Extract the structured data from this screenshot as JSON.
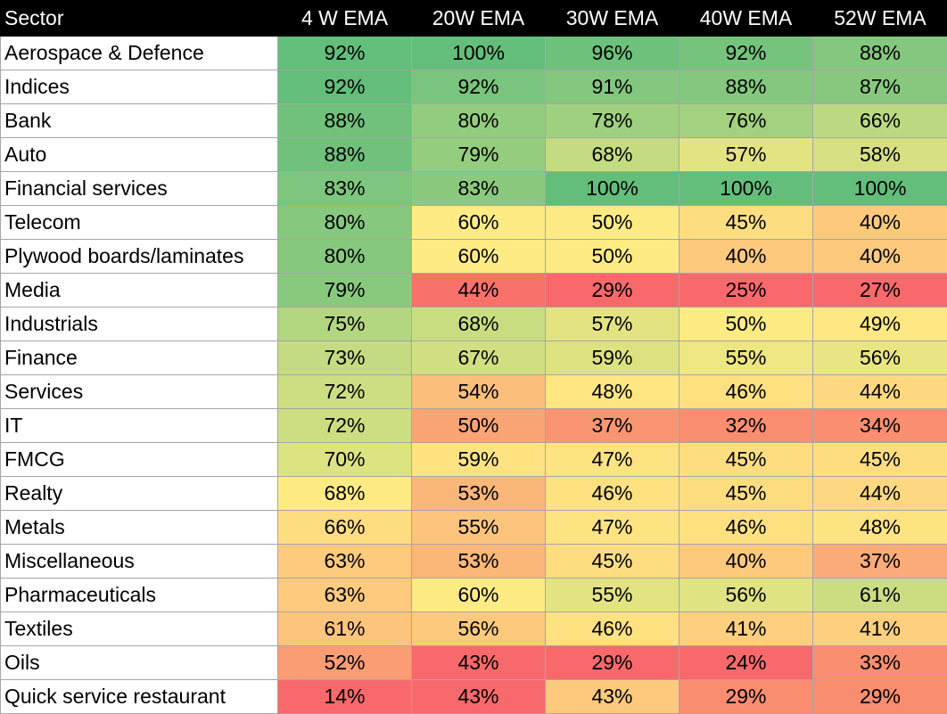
{
  "table": {
    "headers": [
      "Sector",
      "4 W EMA",
      "20W EMA",
      "30W EMA",
      "40W EMA",
      "52W EMA"
    ],
    "rows": [
      {
        "sector": "Aerospace & Defence",
        "values": [
          "92%",
          "100%",
          "96%",
          "92%",
          "88%"
        ]
      },
      {
        "sector": "Indices",
        "values": [
          "92%",
          "92%",
          "91%",
          "88%",
          "87%"
        ]
      },
      {
        "sector": "Bank",
        "values": [
          "88%",
          "80%",
          "78%",
          "76%",
          "66%"
        ]
      },
      {
        "sector": "Auto",
        "values": [
          "88%",
          "79%",
          "68%",
          "57%",
          "58%"
        ]
      },
      {
        "sector": "Financial services",
        "values": [
          "83%",
          "83%",
          "100%",
          "100%",
          "100%"
        ]
      },
      {
        "sector": "Telecom",
        "values": [
          "80%",
          "60%",
          "50%",
          "45%",
          "40%"
        ]
      },
      {
        "sector": "Plywood boards/laminates",
        "values": [
          "80%",
          "60%",
          "50%",
          "40%",
          "40%"
        ]
      },
      {
        "sector": "Media",
        "values": [
          "79%",
          "44%",
          "29%",
          "25%",
          "27%"
        ]
      },
      {
        "sector": "Industrials",
        "values": [
          "75%",
          "68%",
          "57%",
          "50%",
          "49%"
        ]
      },
      {
        "sector": "Finance",
        "values": [
          "73%",
          "67%",
          "59%",
          "55%",
          "56%"
        ]
      },
      {
        "sector": "Services",
        "values": [
          "72%",
          "54%",
          "48%",
          "46%",
          "44%"
        ]
      },
      {
        "sector": "IT",
        "values": [
          "72%",
          "50%",
          "37%",
          "32%",
          "34%"
        ]
      },
      {
        "sector": "FMCG",
        "values": [
          "70%",
          "59%",
          "47%",
          "45%",
          "45%"
        ]
      },
      {
        "sector": "Realty",
        "values": [
          "68%",
          "53%",
          "46%",
          "45%",
          "44%"
        ]
      },
      {
        "sector": "Metals",
        "values": [
          "66%",
          "55%",
          "47%",
          "46%",
          "48%"
        ]
      },
      {
        "sector": "Miscellaneous",
        "values": [
          "63%",
          "53%",
          "45%",
          "40%",
          "37%"
        ]
      },
      {
        "sector": "Pharmaceuticals",
        "values": [
          "63%",
          "60%",
          "55%",
          "56%",
          "61%"
        ]
      },
      {
        "sector": "Textiles",
        "values": [
          "61%",
          "56%",
          "46%",
          "41%",
          "41%"
        ]
      },
      {
        "sector": "Oils",
        "values": [
          "52%",
          "43%",
          "29%",
          "24%",
          "33%"
        ]
      },
      {
        "sector": "Quick service restaurant",
        "values": [
          "14%",
          "43%",
          "43%",
          "29%",
          "29%"
        ]
      }
    ],
    "cell_colors": [
      [
        "#63be7b",
        "#63be7b",
        "#6dc17c",
        "#75c37d",
        "#84c77e"
      ],
      [
        "#63be7b",
        "#7ac47d",
        "#83c77e",
        "#84c77e",
        "#87c87e"
      ],
      [
        "#6fc17c",
        "#92cc7e",
        "#9fd07f",
        "#a2d17f",
        "#bcd981"
      ],
      [
        "#6fc17c",
        "#95cd7e",
        "#c3db81",
        "#e3e382",
        "#d6df82"
      ],
      [
        "#7ec57d",
        "#8bca7e",
        "#63be7b",
        "#63be7b",
        "#63be7b"
      ],
      [
        "#86c87e",
        "#ffeb84",
        "#ffeb84",
        "#fedd81",
        "#fdc97d"
      ],
      [
        "#86c87e",
        "#ffeb84",
        "#ffeb84",
        "#fdc97d",
        "#fdc97d"
      ],
      [
        "#89c97e",
        "#f8716b",
        "#f8696b",
        "#f8696b",
        "#f8696b"
      ],
      [
        "#b3d680",
        "#c8dd81",
        "#e3e382",
        "#ffeb84",
        "#ffe883"
      ],
      [
        "#c4db81",
        "#d1df82",
        "#dde281",
        "#eee683",
        "#e8e582"
      ],
      [
        "#ccde82",
        "#fcbe7b",
        "#fee683",
        "#fee081",
        "#fed880"
      ],
      [
        "#ccde82",
        "#fba476",
        "#fa9572",
        "#f98d70",
        "#f98f70"
      ],
      [
        "#dce381",
        "#ffe383",
        "#fee383",
        "#fedd81",
        "#fedd81"
      ],
      [
        "#ffeb84",
        "#fbb679",
        "#fee181",
        "#fedd81",
        "#fed880"
      ],
      [
        "#fedd81",
        "#fdc47d",
        "#fee383",
        "#fee081",
        "#fee383"
      ],
      [
        "#fdca7e",
        "#fbb679",
        "#fedd81",
        "#fdc97d",
        "#fbab77"
      ],
      [
        "#fdca7e",
        "#ffeb84",
        "#e3e382",
        "#e0e382",
        "#cadd82"
      ],
      [
        "#fdc47d",
        "#fdc97d",
        "#fee181",
        "#fdcf7e",
        "#fdcf7e"
      ],
      [
        "#fb9d74",
        "#f8696b",
        "#f8696b",
        "#f8696b",
        "#f98f70"
      ],
      [
        "#f8696b",
        "#f8696b",
        "#fdc97d",
        "#fa8d70",
        "#f98d70"
      ]
    ]
  }
}
